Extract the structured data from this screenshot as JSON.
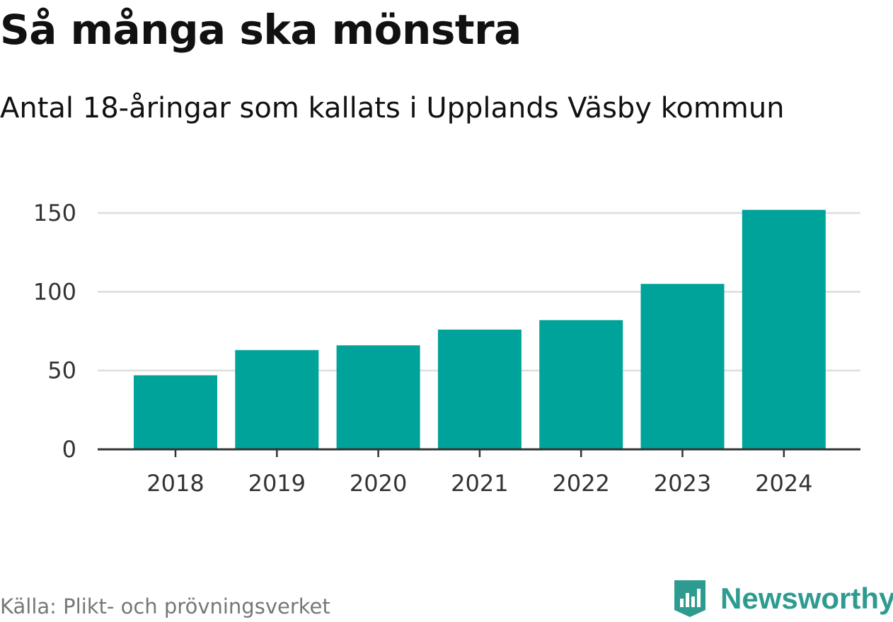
{
  "header": {
    "title": "Så många ska mönstra",
    "subtitle": "Antal 18-åringar som kallats i Upplands Väsby kommun"
  },
  "footer": {
    "source": "Källa: Plikt- och prövningsverket",
    "brand": "Newsworthy",
    "brand_icon": "newsworthy-logo-icon"
  },
  "colors": {
    "bar": "#00a39a",
    "grid": "#dddddd",
    "axis": "#333333",
    "brand": "#2e9b90"
  },
  "chart_data": {
    "type": "bar",
    "title": "Så många ska mönstra",
    "subtitle": "Antal 18-åringar som kallats i Upplands Väsby kommun",
    "categories": [
      "2018",
      "2019",
      "2020",
      "2021",
      "2022",
      "2023",
      "2024"
    ],
    "values": [
      47,
      63,
      66,
      76,
      82,
      105,
      152
    ],
    "xlabel": "",
    "ylabel": "",
    "ylim": [
      0,
      150
    ],
    "yticks": [
      "0",
      "50",
      "100",
      "150"
    ],
    "grid": true
  }
}
